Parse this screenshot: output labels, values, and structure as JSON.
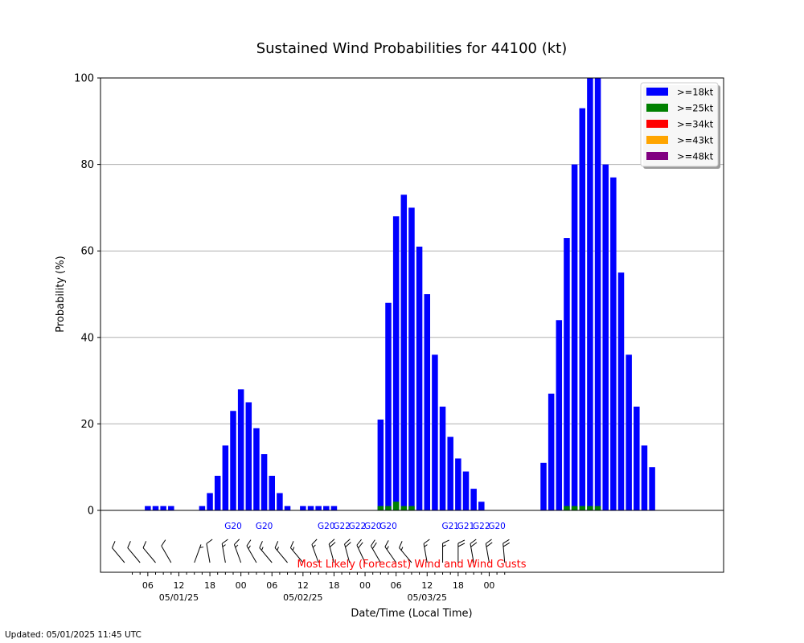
{
  "chart_data": {
    "type": "bar",
    "title": "Sustained Wind Probabilities for 44100 (kt)",
    "xlabel": "Date/Time (Local Time)",
    "ylabel": "Probability (%)",
    "ylim": [
      0,
      100
    ],
    "y_ticks": [
      "0",
      "20",
      "40",
      "60",
      "80",
      "100"
    ],
    "grid": true,
    "legend_position": "top-right",
    "hours_per_step": 1.5,
    "x_ticks": [
      {
        "step": 4,
        "label": "06"
      },
      {
        "step": 8,
        "label": "12"
      },
      {
        "step": 12,
        "label": "18"
      },
      {
        "step": 16,
        "label": "00"
      },
      {
        "step": 20,
        "label": "06"
      },
      {
        "step": 24,
        "label": "12"
      },
      {
        "step": 28,
        "label": "18"
      },
      {
        "step": 32,
        "label": "00"
      },
      {
        "step": 36,
        "label": "06"
      },
      {
        "step": 40,
        "label": "12"
      },
      {
        "step": 44,
        "label": "18"
      },
      {
        "step": 48,
        "label": "00"
      }
    ],
    "date_labels": [
      {
        "step": 8,
        "label": "05/01/25"
      },
      {
        "step": 24,
        "label": "05/02/25"
      },
      {
        "step": 40,
        "label": "05/03/25"
      }
    ],
    "series": [
      {
        "name": ">=18kt",
        "color": "#0000ff",
        "values": [
          0,
          0,
          0,
          0,
          1,
          1,
          1,
          1,
          0,
          0,
          0,
          1,
          4,
          8,
          15,
          23,
          28,
          25,
          19,
          13,
          8,
          4,
          1,
          0,
          1,
          1,
          1,
          1,
          1,
          0,
          0,
          0,
          0,
          0,
          21,
          48,
          68,
          73,
          70,
          61,
          50,
          36,
          24,
          17,
          12,
          9,
          5,
          2,
          0,
          0,
          0,
          0,
          0,
          0,
          0,
          11,
          27,
          44,
          63,
          80,
          93,
          100,
          100,
          80,
          77,
          55,
          36,
          24,
          15,
          10
        ]
      },
      {
        "name": ">=25kt",
        "color": "#008000",
        "values": [
          0,
          0,
          0,
          0,
          0,
          0,
          0,
          0,
          0,
          0,
          0,
          0,
          0,
          0,
          0,
          0,
          0,
          0,
          0,
          0,
          0,
          0,
          0,
          0,
          0,
          0,
          0,
          0,
          0,
          0,
          0,
          0,
          0,
          0,
          1,
          1,
          2,
          1,
          1,
          0,
          0,
          0,
          0,
          0,
          0,
          0,
          0,
          0,
          0,
          0,
          0,
          0,
          0,
          0,
          0,
          0,
          0,
          0,
          1,
          1,
          1,
          1,
          1,
          0,
          0,
          0,
          0,
          0,
          0,
          0
        ]
      },
      {
        "name": ">=34kt",
        "color": "#ff0000",
        "values": []
      },
      {
        "name": ">=43kt",
        "color": "#ffa500",
        "values": []
      },
      {
        "name": ">=48kt",
        "color": "#800080",
        "values": []
      }
    ],
    "gusts_title": "Most Likely (Forecast) Wind and Wind Gusts",
    "gusts": [
      {
        "step": 15,
        "label": "G20"
      },
      {
        "step": 19,
        "label": "G20"
      },
      {
        "step": 27,
        "label": "G20"
      },
      {
        "step": 29,
        "label": "G22"
      },
      {
        "step": 31,
        "label": "G22"
      },
      {
        "step": 33,
        "label": "G20"
      },
      {
        "step": 35,
        "label": "G20"
      },
      {
        "step": 43,
        "label": "G21"
      },
      {
        "step": 45,
        "label": "G21"
      },
      {
        "step": 47,
        "label": "G22"
      },
      {
        "step": 49,
        "label": "G20"
      }
    ],
    "wind_barbs": [
      {
        "step": 1,
        "dir": 320,
        "speed": 10
      },
      {
        "step": 3,
        "dir": 320,
        "speed": 10
      },
      {
        "step": 5,
        "dir": 320,
        "speed": 10
      },
      {
        "step": 7,
        "dir": 330,
        "speed": 10
      },
      {
        "step": 10,
        "dir": 20,
        "speed": 5
      },
      {
        "step": 12,
        "dir": 350,
        "speed": 10
      },
      {
        "step": 14,
        "dir": 350,
        "speed": 15
      },
      {
        "step": 16,
        "dir": 340,
        "speed": 15
      },
      {
        "step": 18,
        "dir": 330,
        "speed": 15
      },
      {
        "step": 20,
        "dir": 320,
        "speed": 15
      },
      {
        "step": 22,
        "dir": 320,
        "speed": 15
      },
      {
        "step": 24,
        "dir": 320,
        "speed": 15
      },
      {
        "step": 26,
        "dir": 340,
        "speed": 15
      },
      {
        "step": 28,
        "dir": 345,
        "speed": 20
      },
      {
        "step": 30,
        "dir": 345,
        "speed": 20
      },
      {
        "step": 32,
        "dir": 335,
        "speed": 20
      },
      {
        "step": 34,
        "dir": 330,
        "speed": 20
      },
      {
        "step": 36,
        "dir": 325,
        "speed": 15
      },
      {
        "step": 38,
        "dir": 320,
        "speed": 15
      },
      {
        "step": 40,
        "dir": 350,
        "speed": 15
      },
      {
        "step": 42,
        "dir": 0,
        "speed": 15
      },
      {
        "step": 44,
        "dir": 0,
        "speed": 20
      },
      {
        "step": 46,
        "dir": 350,
        "speed": 20
      },
      {
        "step": 48,
        "dir": 350,
        "speed": 20
      },
      {
        "step": 50,
        "dir": 355,
        "speed": 20
      }
    ]
  },
  "footer": {
    "updated": "Updated: 05/01/2025 11:45 UTC"
  }
}
